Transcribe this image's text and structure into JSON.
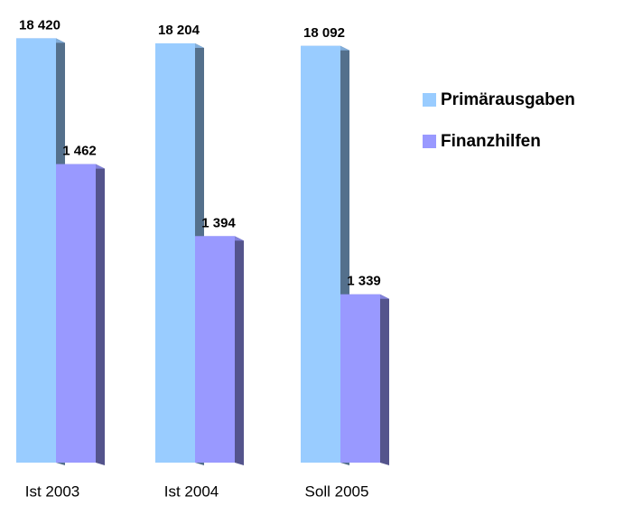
{
  "chart_data": {
    "type": "bar",
    "categories": [
      "Ist 2003",
      "Ist 2004",
      "Soll 2005"
    ],
    "series": [
      {
        "name": "Primärausgaben",
        "color": "#99ccff",
        "values": [
          18420,
          18204,
          18092
        ],
        "value_labels": [
          "18 420",
          "18 204",
          "18 092"
        ]
      },
      {
        "name": "Finanzhilfen",
        "color": "#9999ff",
        "axis": "y2",
        "values": [
          1462,
          1394,
          1339
        ],
        "value_labels": [
          "1 462",
          "1 394",
          "1 339"
        ]
      }
    ],
    "ylim": [
      0,
      19300
    ],
    "y2lim": [
      1180,
      1600
    ],
    "legend": "right"
  }
}
